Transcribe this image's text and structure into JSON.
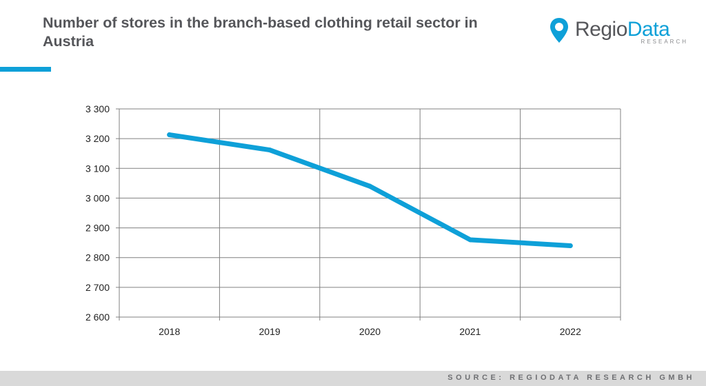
{
  "header": {
    "title": "Number of stores in the branch-based clothing retail sector in Austria"
  },
  "logo": {
    "brand_part1": "Regio",
    "brand_part2": "Data",
    "subtitle": "RESEARCH",
    "icon": "map-pin-icon"
  },
  "colors": {
    "accent": "#0ea0d8",
    "text": "#55565a",
    "grid": "#808080",
    "footer_bg": "#d9d9d9"
  },
  "chart_data": {
    "type": "line",
    "x": [
      "2018",
      "2019",
      "2020",
      "2021",
      "2022"
    ],
    "series": [
      {
        "values": [
          3213,
          3162,
          3040,
          2860,
          2840
        ]
      }
    ],
    "y_ticks": [
      "2 600",
      "2 700",
      "2 800",
      "2 900",
      "3 000",
      "3 100",
      "3 200",
      "3 300"
    ],
    "ylim": [
      2600,
      3300
    ],
    "grid": true,
    "legend": false
  },
  "footer": {
    "source": "SOURCE: REGIODATA RESEARCH GMBH"
  }
}
